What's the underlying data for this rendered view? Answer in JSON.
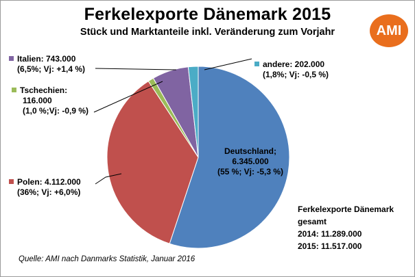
{
  "chart_data": {
    "type": "pie",
    "title": "Ferkelexporte Dänemark 2015",
    "subtitle": "Stück und Marktanteile inkl. Veränderung zum Vorjahr",
    "slices": [
      {
        "name": "Deutschland",
        "value": 6345000,
        "label_name": "Deutschland;",
        "label_value": "6.345.000",
        "label_share": "(55 %; Vj: -5,3 %)",
        "color": "#4f81bd"
      },
      {
        "name": "Polen",
        "value": 4112000,
        "label_name": "Polen: 4.112.000",
        "label_share": "(36%; Vj: +6,0%)",
        "color": "#c0504d"
      },
      {
        "name": "Tschechien",
        "value": 116000,
        "label_name": "Tschechien:",
        "label_value": "116.000",
        "label_share": "(1,0 %;Vj: -0,9 %)",
        "color": "#9bbb59"
      },
      {
        "name": "Italien",
        "value": 743000,
        "label_name": "Italien: 743.000",
        "label_share": "(6,5%; Vj: +1,4 %)",
        "color": "#8064a2"
      },
      {
        "name": "andere",
        "value": 202000,
        "label_name": "andere: 202.000",
        "label_share": "(1,8%; Vj: -0,5 %)",
        "color": "#4bacc6"
      }
    ]
  },
  "logo_text": "AMI",
  "totals": {
    "line1": "Ferkelexporte Dänemark",
    "line2": "gesamt",
    "line3": "2014: 11.289.000",
    "line4": "2015: 11.517.000"
  },
  "source": "Quelle: AMI nach Danmarks Statistik, Januar 2016"
}
